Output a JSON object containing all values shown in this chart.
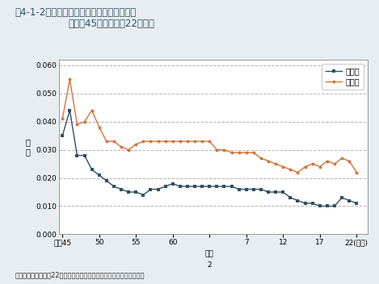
{
  "title_line1": "図4-1-2　二酸化窒素濃度の年平均値の推移",
  "title_line2": "（昭和45年度～平成22年度）",
  "ylabel": "濃\n度",
  "caption": "資料：環境省「平成22年度大気汚染状況について（報道発表資料）」",
  "background_color": "#e8edf1",
  "plot_bg_color": "#ffffff",
  "ylim": [
    0.0,
    0.062
  ],
  "yticks": [
    0.0,
    0.01,
    0.02,
    0.03,
    0.04,
    0.05,
    0.06
  ],
  "x_tick_positions": [
    1970,
    1975,
    1980,
    1985,
    1990,
    1995,
    2000,
    2005,
    2010
  ],
  "general_color": "#2e5060",
  "road_color": "#d4723a",
  "general_label": "一般局",
  "road_label": "自排局",
  "title_color": "#2e5060",
  "years": [
    1970,
    1971,
    1972,
    1973,
    1974,
    1975,
    1976,
    1977,
    1978,
    1979,
    1980,
    1981,
    1982,
    1983,
    1984,
    1985,
    1986,
    1987,
    1988,
    1989,
    1990,
    1991,
    1992,
    1993,
    1994,
    1995,
    1996,
    1997,
    1998,
    1999,
    2000,
    2001,
    2002,
    2003,
    2004,
    2005,
    2006,
    2007,
    2008,
    2009,
    2010
  ],
  "general_values": [
    0.035,
    0.044,
    0.028,
    0.028,
    0.023,
    0.021,
    0.019,
    0.017,
    0.016,
    0.015,
    0.015,
    0.014,
    0.016,
    0.016,
    0.017,
    0.018,
    0.017,
    0.017,
    0.017,
    0.017,
    0.017,
    0.017,
    0.017,
    0.017,
    0.016,
    0.016,
    0.016,
    0.016,
    0.015,
    0.015,
    0.015,
    0.013,
    0.012,
    0.011,
    0.011,
    0.01,
    0.01,
    0.01,
    0.013,
    0.012,
    0.011
  ],
  "road_values": [
    0.041,
    0.055,
    0.039,
    0.04,
    0.044,
    0.038,
    0.033,
    0.033,
    0.031,
    0.03,
    0.032,
    0.033,
    0.033,
    0.033,
    0.033,
    0.033,
    0.033,
    0.033,
    0.033,
    0.033,
    0.033,
    0.03,
    0.03,
    0.029,
    0.029,
    0.029,
    0.029,
    0.027,
    0.026,
    0.025,
    0.024,
    0.023,
    0.022,
    0.024,
    0.025,
    0.024,
    0.026,
    0.025,
    0.027,
    0.026,
    0.022
  ]
}
